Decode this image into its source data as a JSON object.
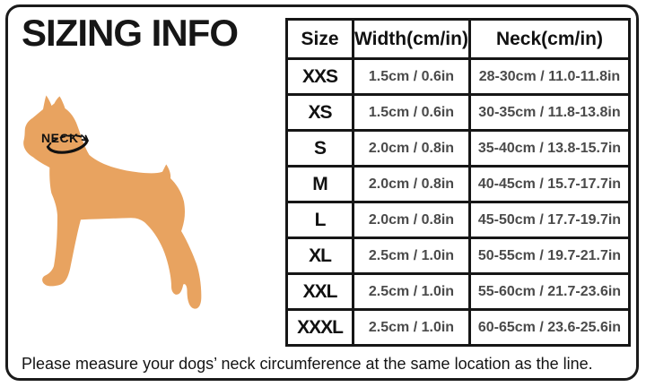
{
  "page": {
    "title": "SIZING INFO",
    "note": "Please measure your dogs’  neck circumference at the same location as the line."
  },
  "illustration": {
    "dog_description": "orange boxer dog silhouette facing left",
    "neck_label": "NECK",
    "dog_color": "#E8A360",
    "collar_color": "#111111"
  },
  "table": {
    "headers": [
      "Size",
      "Width(cm/in)",
      "Neck(cm/in)"
    ],
    "rows": [
      [
        "XXS",
        "1.5cm / 0.6in",
        "28-30cm / 11.0-11.8in"
      ],
      [
        "XS",
        "1.5cm / 0.6in",
        "30-35cm / 11.8-13.8in"
      ],
      [
        "S",
        "2.0cm / 0.8in",
        "35-40cm / 13.8-15.7in"
      ],
      [
        "M",
        "2.0cm / 0.8in",
        "40-45cm / 15.7-17.7in"
      ],
      [
        "L",
        "2.0cm / 0.8in",
        "45-50cm / 17.7-19.7in"
      ],
      [
        "XL",
        "2.5cm / 1.0in",
        "50-55cm / 19.7-21.7in"
      ],
      [
        "XXL",
        "2.5cm / 1.0in",
        "55-60cm / 21.7-23.6in"
      ],
      [
        "XXXL",
        "2.5cm / 1.0in",
        "60-65cm / 23.6-25.6in"
      ]
    ]
  }
}
